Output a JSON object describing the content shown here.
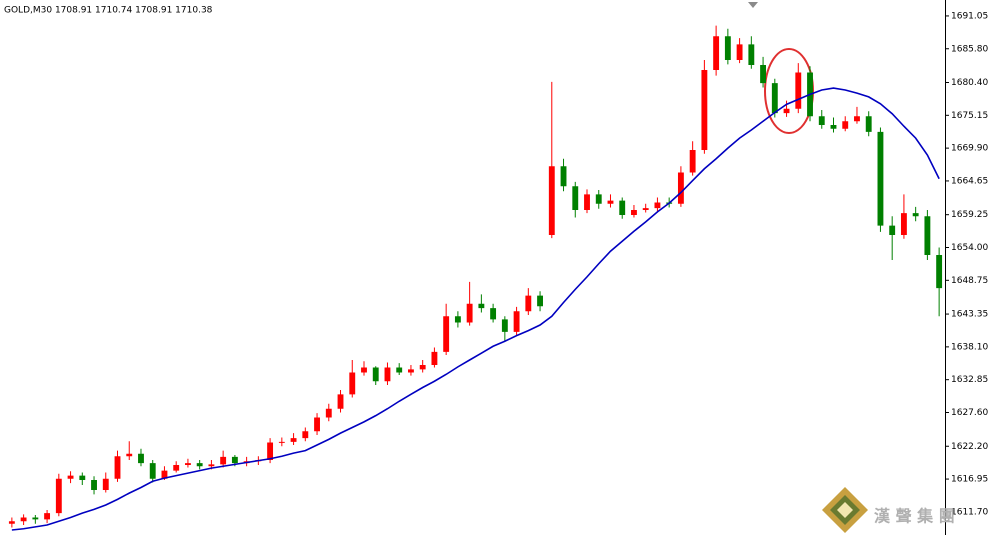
{
  "chart_data": {
    "type": "candlestick",
    "title": "GOLD,M30  1708.91 1710.74 1708.91 1710.38",
    "watermark": "漢 聲 集 團",
    "up_color": "#ff0000",
    "down_color": "#008000",
    "ylim": [
      1608.0,
      1693.6
    ],
    "yticks": [
      1691.05,
      {
        "value": 1685.8,
        "label": "1685.80"
      },
      {
        "value": 1680.4,
        "label": "1680.40"
      },
      1675.15,
      {
        "value": 1669.9,
        "label": "1669.90"
      },
      1664.65,
      1659.25,
      {
        "value": 1654.0,
        "label": "1654.00"
      },
      1648.75,
      1643.35,
      {
        "value": 1638.1,
        "label": "1638.10"
      },
      1632.85,
      {
        "value": 1627.6,
        "label": "1627.60"
      },
      {
        "value": 1622.2,
        "label": "1622.20"
      },
      1616.95,
      {
        "value": 1611.7,
        "label": "1611.70"
      }
    ],
    "open": [
      1609.8,
      1610.2,
      1610.8,
      1610.5,
      1611.5,
      1617.0,
      1617.5,
      1616.8,
      1615.2,
      1617.0,
      1620.6,
      1621.0,
      1619.5,
      1617.0,
      1618.3,
      1619.2,
      1619.5,
      1619.0,
      1619.3,
      1620.5,
      1619.5,
      1619.8,
      1620.0,
      1622.8,
      1622.9,
      1623.5,
      1624.6,
      1626.8,
      1628.2,
      1630.5,
      1634.0,
      1634.8,
      1632.6,
      1634.8,
      1634.0,
      1634.5,
      1635.2,
      1637.3,
      1643.0,
      1642.0,
      1645.0,
      1644.3,
      1642.5,
      1640.5,
      1643.8,
      1646.3,
      1656.0,
      1667.0,
      1663.8,
      1660.0,
      1662.5,
      1661.0,
      1661.5,
      1659.2,
      1660.0,
      1660.3,
      1661.2,
      1661.0,
      1666.0,
      1669.6,
      1682.4,
      1687.8,
      1684.0,
      1686.5,
      1683.2,
      1680.3,
      1675.5,
      1676.2,
      1682.0,
      1675.0,
      1673.6,
      1673.0,
      1674.2,
      1675.0,
      1672.5,
      1657.5,
      1656.0,
      1659.5,
      1659.0,
      1652.8
    ],
    "high": [
      1610.8,
      1611.3,
      1611.2,
      1612.0,
      1617.8,
      1618.2,
      1618.0,
      1617.4,
      1618.0,
      1621.5,
      1623.0,
      1621.8,
      1620.0,
      1619.0,
      1619.8,
      1620.2,
      1620.0,
      1620.0,
      1621.5,
      1620.8,
      1620.5,
      1620.6,
      1623.5,
      1623.6,
      1624.3,
      1625.2,
      1627.5,
      1629.0,
      1631.2,
      1636.0,
      1635.8,
      1635.0,
      1635.6,
      1635.5,
      1635.2,
      1636.0,
      1638.0,
      1645.0,
      1643.8,
      1648.5,
      1646.5,
      1645.0,
      1643.0,
      1644.5,
      1647.5,
      1647.0,
      1680.5,
      1668.2,
      1664.5,
      1663.3,
      1663.2,
      1662.5,
      1662.0,
      1660.8,
      1661.0,
      1662.0,
      1662.0,
      1667.0,
      1671.0,
      1684.0,
      1689.5,
      1689.0,
      1687.5,
      1687.8,
      1684.5,
      1681.0,
      1677.5,
      1683.5,
      1683.0,
      1676.0,
      1674.8,
      1675.0,
      1676.5,
      1675.8,
      1673.2,
      1659.0,
      1662.5,
      1660.5,
      1660.0,
      1654.0
    ],
    "low": [
      1609.2,
      1609.6,
      1609.8,
      1609.9,
      1611.0,
      1616.3,
      1616.0,
      1614.5,
      1614.8,
      1616.5,
      1620.0,
      1619.0,
      1616.4,
      1616.8,
      1618.0,
      1618.8,
      1618.5,
      1618.5,
      1618.8,
      1619.0,
      1619.0,
      1619.2,
      1619.5,
      1622.2,
      1622.4,
      1623.0,
      1624.0,
      1626.2,
      1627.6,
      1630.0,
      1633.5,
      1632.0,
      1632.0,
      1633.6,
      1633.5,
      1634.0,
      1634.8,
      1636.8,
      1641.2,
      1641.5,
      1643.6,
      1642.0,
      1639.0,
      1640.0,
      1643.2,
      1643.8,
      1655.5,
      1663.0,
      1658.8,
      1659.5,
      1660.2,
      1660.4,
      1658.6,
      1658.8,
      1659.6,
      1659.8,
      1660.4,
      1660.5,
      1665.5,
      1669.0,
      1681.5,
      1683.3,
      1683.5,
      1682.6,
      1679.6,
      1674.8,
      1674.9,
      1675.5,
      1674.2,
      1673.0,
      1672.4,
      1672.6,
      1673.8,
      1671.8,
      1656.5,
      1652.0,
      1655.4,
      1658.2,
      1652.0,
      1643.0
    ],
    "close": [
      1610.2,
      1610.8,
      1610.5,
      1611.5,
      1617.0,
      1617.5,
      1616.8,
      1615.2,
      1617.0,
      1620.6,
      1621.0,
      1619.5,
      1617.0,
      1618.3,
      1619.2,
      1619.5,
      1619.0,
      1619.3,
      1620.5,
      1619.5,
      1619.8,
      1620.0,
      1622.8,
      1622.9,
      1623.5,
      1624.6,
      1626.8,
      1628.2,
      1630.5,
      1634.0,
      1634.8,
      1632.6,
      1634.8,
      1634.0,
      1634.5,
      1635.2,
      1637.3,
      1643.0,
      1642.0,
      1645.0,
      1644.3,
      1642.5,
      1640.5,
      1643.8,
      1646.3,
      1644.6,
      1667.0,
      1663.8,
      1660.0,
      1662.5,
      1661.0,
      1661.5,
      1659.2,
      1660.0,
      1660.3,
      1661.2,
      1661.0,
      1666.0,
      1669.6,
      1682.4,
      1687.8,
      1684.0,
      1686.5,
      1683.2,
      1680.3,
      1675.5,
      1676.2,
      1682.0,
      1675.0,
      1673.6,
      1673.0,
      1674.2,
      1675.0,
      1672.5,
      1657.5,
      1656.0,
      1659.5,
      1659.0,
      1652.8,
      1647.5
    ],
    "moving_average": {
      "color": "#0000c0",
      "values": [
        1608.8,
        1609.0,
        1609.3,
        1609.6,
        1610.2,
        1610.8,
        1611.5,
        1612.1,
        1612.8,
        1613.7,
        1614.7,
        1615.6,
        1616.6,
        1617.1,
        1617.5,
        1617.9,
        1618.3,
        1618.7,
        1619.0,
        1619.3,
        1619.6,
        1619.9,
        1620.2,
        1620.6,
        1621.1,
        1621.5,
        1622.4,
        1623.3,
        1624.3,
        1625.2,
        1626.1,
        1627.1,
        1628.2,
        1629.4,
        1630.5,
        1631.6,
        1632.6,
        1633.7,
        1634.9,
        1636.0,
        1637.1,
        1638.2,
        1639.0,
        1639.9,
        1640.7,
        1641.6,
        1643.0,
        1645.2,
        1647.3,
        1649.3,
        1651.4,
        1653.4,
        1655.0,
        1656.6,
        1658.1,
        1659.7,
        1661.1,
        1662.8,
        1664.7,
        1666.6,
        1668.2,
        1669.9,
        1671.5,
        1672.8,
        1674.2,
        1675.6,
        1676.9,
        1677.7,
        1678.5,
        1679.2,
        1679.5,
        1679.2,
        1678.7,
        1678.1,
        1677.0,
        1675.4,
        1673.4,
        1671.5,
        1668.8,
        1665.0
      ]
    }
  }
}
